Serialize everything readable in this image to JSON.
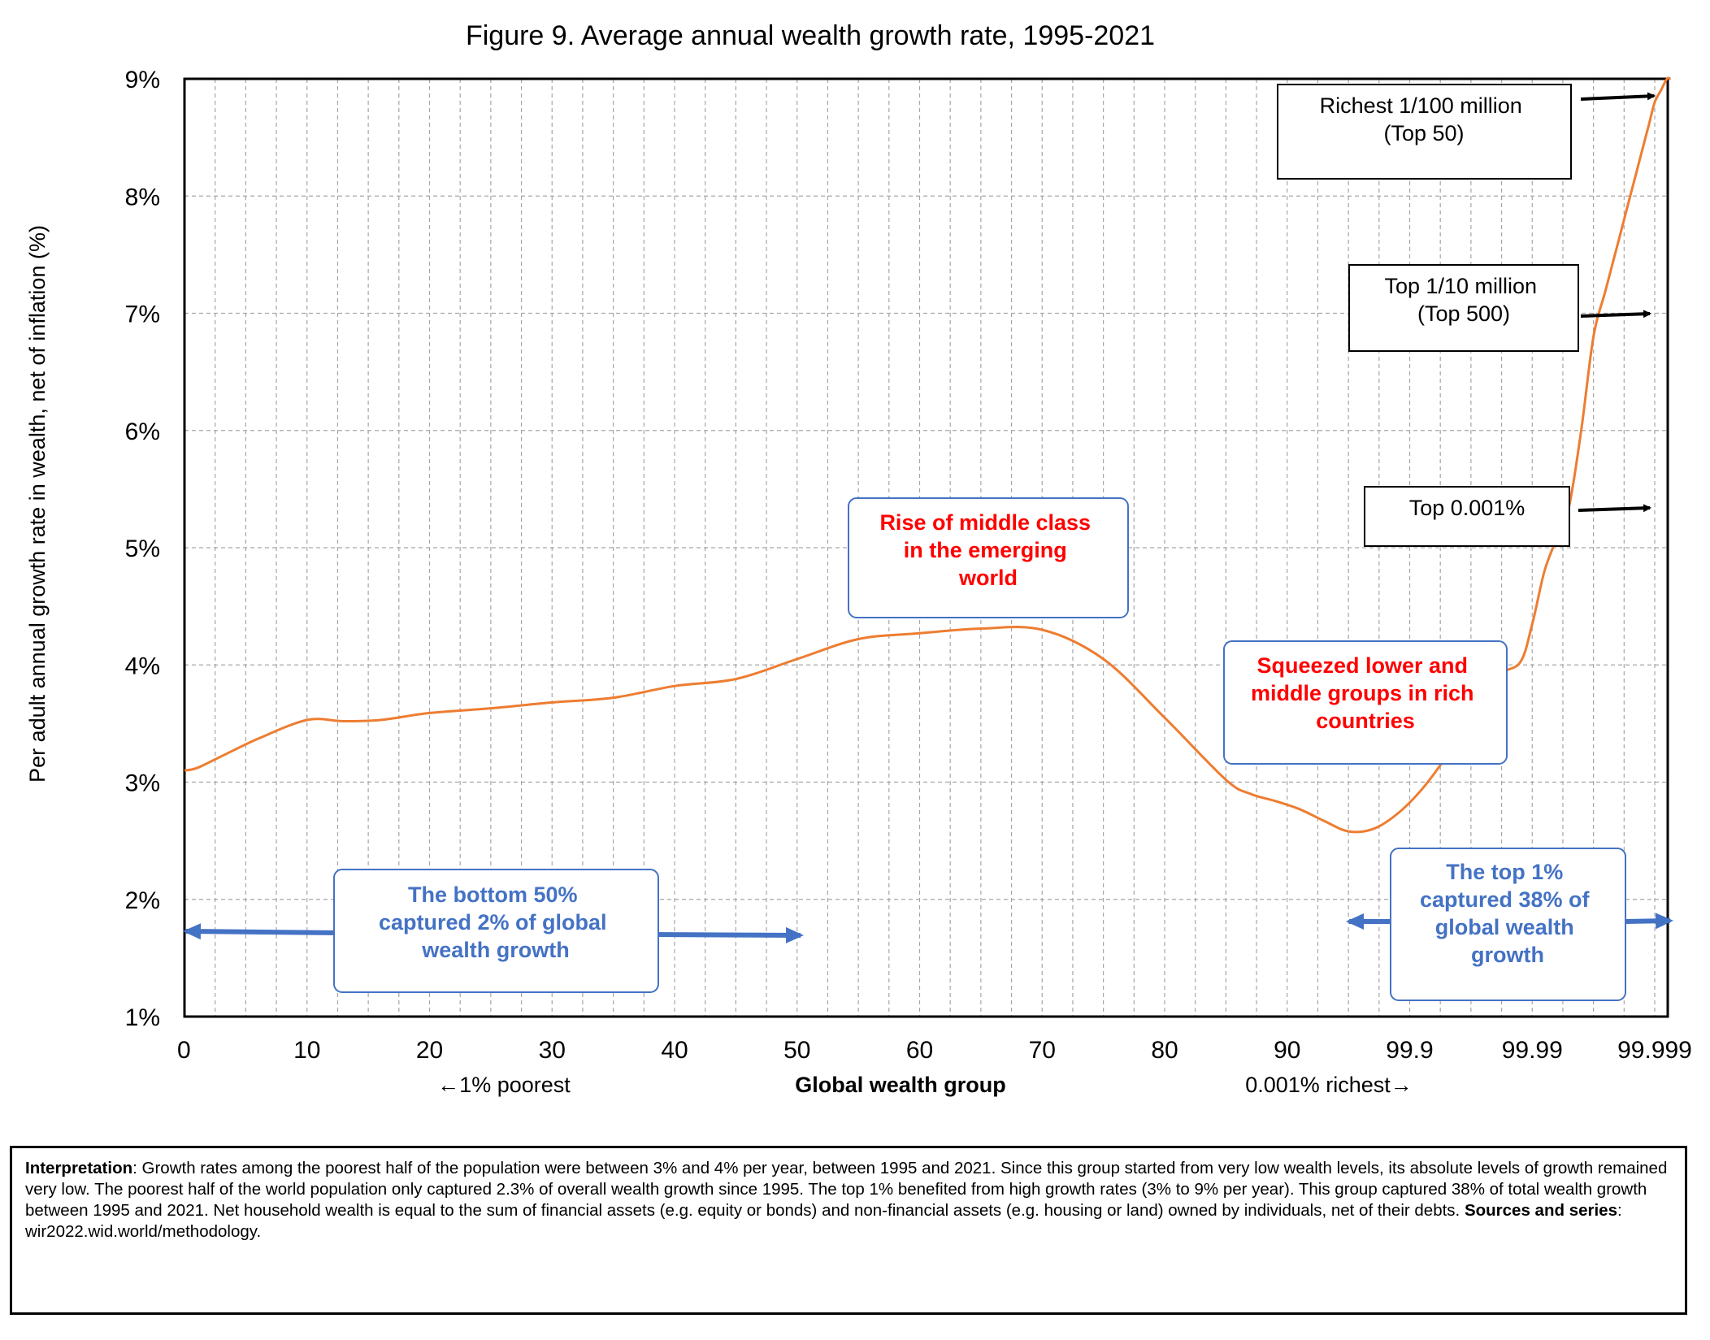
{
  "chart_data": {
    "type": "line",
    "title": "Figure 9. Average annual wealth growth rate, 1995-2021",
    "xlabel": "Global wealth group",
    "ylabel": "Per adult annual growth rate in wealth, net of inflation (%)",
    "ylim": [
      1,
      9
    ],
    "y_ticks": [
      "1%",
      "2%",
      "3%",
      "4%",
      "5%",
      "6%",
      "7%",
      "8%",
      "9%"
    ],
    "x_tick_labels": [
      "0",
      "10",
      "20",
      "30",
      "40",
      "50",
      "60",
      "70",
      "80",
      "90",
      "99.9",
      "99.99",
      "99.999"
    ],
    "x_left_note": "←1% poorest",
    "x_right_note": "0.001% richest→",
    "grid": true,
    "series_color": "#ED7D31",
    "series": [
      {
        "x": [
          0,
          1,
          3,
          6,
          10,
          13,
          16,
          20,
          25,
          30,
          35,
          40,
          45,
          50,
          55,
          60,
          65,
          70,
          75,
          80,
          85,
          87,
          89,
          91,
          93,
          95,
          97,
          99,
          101,
          103,
          105,
          107,
          109,
          110,
          111,
          112,
          113,
          114,
          115,
          116,
          117,
          118,
          119,
          119.5,
          120,
          120.5,
          121,
          121.3
        ],
        "y": [
          3.1,
          3.12,
          3.22,
          3.37,
          3.53,
          3.52,
          3.53,
          3.59,
          3.63,
          3.68,
          3.72,
          3.82,
          3.88,
          4.05,
          4.22,
          4.27,
          4.31,
          4.3,
          4.05,
          3.55,
          3.02,
          2.9,
          2.84,
          2.77,
          2.67,
          2.58,
          2.6,
          2.73,
          2.94,
          3.22,
          3.55,
          3.9,
          4.02,
          4.35,
          4.8,
          5.08,
          5.35,
          6.0,
          6.8,
          7.2,
          7.6,
          8.0,
          8.4,
          8.6,
          8.8,
          8.9,
          9.0,
          9.0
        ]
      }
    ],
    "annotations": {
      "middle_class": "Rise of middle class in the emerging world",
      "squeezed": "Squeezed lower and middle groups in rich countries",
      "bottom50": "The bottom 50% captured 2% of global wealth growth",
      "top1": "The top 1% captured 38% of global wealth growth",
      "top0001": "Top 0.001%",
      "top500": "Top 1/10 million (Top 500)",
      "top50": "Richest 1/100 million (Top 50)"
    }
  },
  "annotation_lines": {
    "middle_class": [
      "Rise of middle class",
      "in the emerging",
      "world"
    ],
    "squeezed": [
      "Squeezed lower and",
      "middle groups in rich",
      "countries"
    ],
    "bottom50": [
      "The bottom 50%",
      "captured 2% of global",
      "wealth growth"
    ],
    "top1": [
      "The top 1%",
      "captured 38% of",
      "global wealth",
      "growth"
    ],
    "top0001": [
      "Top 0.001%"
    ],
    "top500": [
      "Top 1/10 million",
      "(Top 500)"
    ],
    "top50": [
      "Richest 1/100 million",
      "(Top 50)"
    ]
  },
  "colors": {
    "red_text": "#FF0000",
    "blue_text": "#4472C4",
    "arrow_blue": "#4472C4",
    "box_border": "#4472C4",
    "grid": "#A6A6A6"
  },
  "interpretation": {
    "label": "Interpretation",
    "text": ": Growth rates among the poorest half of the population were between 3% and 4% per year, between 1995 and 2021. Since this group started from very low wealth levels, its absolute levels of growth remained very low. The poorest half of the world population only captured 2.3% of overall wealth growth since 1995. The top 1%  benefited from high growth rates (3% to 9% per year). This group captured 38% of total wealth growth between 1995 and 2021. Net household wealth is equal to the sum of financial assets (e.g. equity or bonds) and non-financial assets (e.g. housing or land) owned by individuals, net of their debts. ",
    "sources_label": "Sources and series",
    "sources_text": ": wir2022.wid.world/methodology."
  }
}
